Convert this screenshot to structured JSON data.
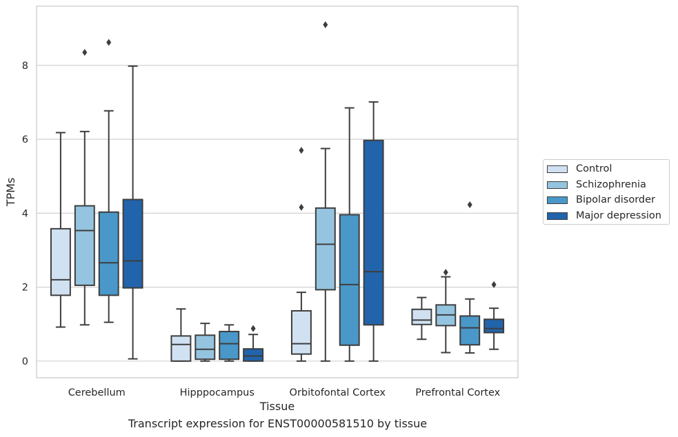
{
  "caption": "Transcript expression for ENST00000581510 by tissue",
  "chart_data": {
    "type": "boxplot",
    "xlabel": "Tissue",
    "ylabel": "TPMs",
    "ylim": [
      -0.45,
      9.6
    ],
    "yticks": [
      0,
      2,
      4,
      6,
      8
    ],
    "grid": "horizontal",
    "legend_position": "right",
    "categories": [
      "Cerebellum",
      "Hipppocampus",
      "Orbitofontal Cortex",
      "Prefrontal Cortex"
    ],
    "series": [
      {
        "name": "Control",
        "color": "#d0e1f2",
        "boxes": [
          {
            "whislo": 0.92,
            "q1": 1.78,
            "med": 2.2,
            "q3": 3.58,
            "whishi": 6.18,
            "fliers": []
          },
          {
            "whislo": 0.0,
            "q1": 0.0,
            "med": 0.45,
            "q3": 0.68,
            "whishi": 1.41,
            "fliers": []
          },
          {
            "whislo": 0.0,
            "q1": 0.19,
            "med": 0.47,
            "q3": 1.36,
            "whishi": 1.86,
            "fliers": [
              4.16,
              5.7
            ]
          },
          {
            "whislo": 0.59,
            "q1": 0.99,
            "med": 1.11,
            "q3": 1.4,
            "whishi": 1.72,
            "fliers": []
          }
        ]
      },
      {
        "name": "Schizophrenia",
        "color": "#94c4df",
        "boxes": [
          {
            "whislo": 0.98,
            "q1": 2.05,
            "med": 3.53,
            "q3": 4.2,
            "whishi": 6.21,
            "fliers": [
              8.35
            ]
          },
          {
            "whislo": 0.0,
            "q1": 0.05,
            "med": 0.32,
            "q3": 0.7,
            "whishi": 1.02,
            "fliers": []
          },
          {
            "whislo": 0.0,
            "q1": 1.93,
            "med": 3.16,
            "q3": 4.14,
            "whishi": 5.75,
            "fliers": [
              9.1
            ]
          },
          {
            "whislo": 0.23,
            "q1": 0.96,
            "med": 1.25,
            "q3": 1.52,
            "whishi": 2.28,
            "fliers": [
              2.4
            ]
          }
        ]
      },
      {
        "name": "Bipolar disorder",
        "color": "#4a98c9",
        "boxes": [
          {
            "whislo": 1.05,
            "q1": 1.78,
            "med": 2.66,
            "q3": 4.03,
            "whishi": 6.77,
            "fliers": [
              8.62
            ]
          },
          {
            "whislo": 0.0,
            "q1": 0.05,
            "med": 0.47,
            "q3": 0.8,
            "whishi": 0.98,
            "fliers": []
          },
          {
            "whislo": 0.0,
            "q1": 0.43,
            "med": 2.07,
            "q3": 3.96,
            "whishi": 6.85,
            "fliers": []
          },
          {
            "whislo": 0.22,
            "q1": 0.44,
            "med": 0.9,
            "q3": 1.22,
            "whishi": 1.68,
            "fliers": [
              4.23
            ]
          }
        ]
      },
      {
        "name": "Major depression",
        "color": "#2264ab",
        "boxes": [
          {
            "whislo": 0.06,
            "q1": 1.98,
            "med": 2.71,
            "q3": 4.37,
            "whishi": 7.98,
            "fliers": []
          },
          {
            "whislo": 0.0,
            "q1": 0.0,
            "med": 0.14,
            "q3": 0.33,
            "whishi": 0.72,
            "fliers": [
              0.88
            ]
          },
          {
            "whislo": 0.0,
            "q1": 0.98,
            "med": 2.42,
            "q3": 5.97,
            "whishi": 7.01,
            "fliers": []
          },
          {
            "whislo": 0.32,
            "q1": 0.77,
            "med": 0.88,
            "q3": 1.13,
            "whishi": 1.43,
            "fliers": [
              2.07
            ]
          }
        ]
      }
    ]
  }
}
